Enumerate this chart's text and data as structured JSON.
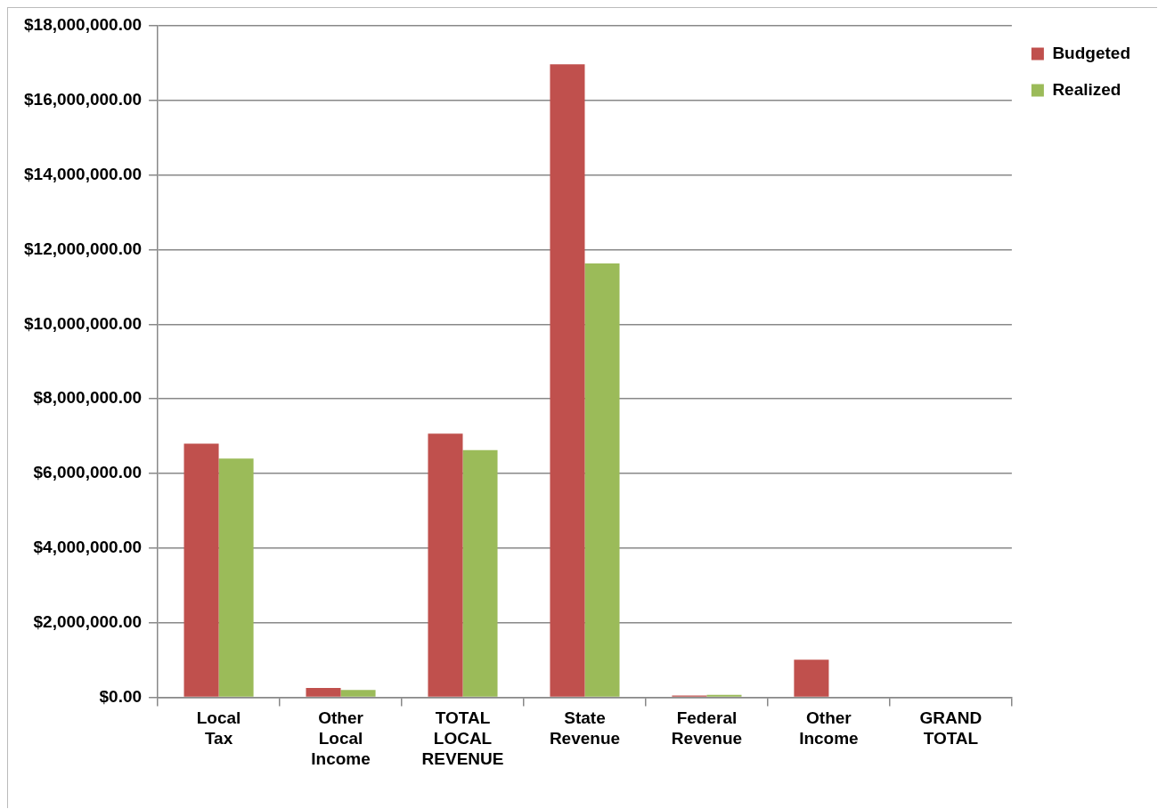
{
  "chart_data": {
    "type": "bar",
    "categories": [
      "Local Tax",
      "Other Local Income",
      "TOTAL LOCAL REVENUE",
      "State Revenue",
      "Federal Revenue",
      "Other Income",
      "GRAND TOTAL"
    ],
    "series": [
      {
        "name": "Budgeted",
        "color": "#c0504d",
        "values": [
          6800000,
          250000,
          7070000,
          16970000,
          50000,
          1010000,
          null
        ]
      },
      {
        "name": "Realized",
        "color": "#9bbb59",
        "values": [
          6400000,
          200000,
          6630000,
          11630000,
          70000,
          null,
          null
        ]
      }
    ],
    "ylim": [
      0,
      18000000
    ],
    "yticks": [
      {
        "value": 0,
        "label": "$0.00"
      },
      {
        "value": 2000000,
        "label": "$2,000,000.00"
      },
      {
        "value": 4000000,
        "label": "$4,000,000.00"
      },
      {
        "value": 6000000,
        "label": "$6,000,000.00"
      },
      {
        "value": 8000000,
        "label": "$8,000,000.00"
      },
      {
        "value": 10000000,
        "label": "$10,000,000.00"
      },
      {
        "value": 12000000,
        "label": "$12,000,000.00"
      },
      {
        "value": 14000000,
        "label": "$14,000,000.00"
      },
      {
        "value": 16000000,
        "label": "$16,000,000.00"
      },
      {
        "value": 18000000,
        "label": "$18,000,000.00"
      }
    ],
    "grid": "y",
    "legend": "top right"
  }
}
